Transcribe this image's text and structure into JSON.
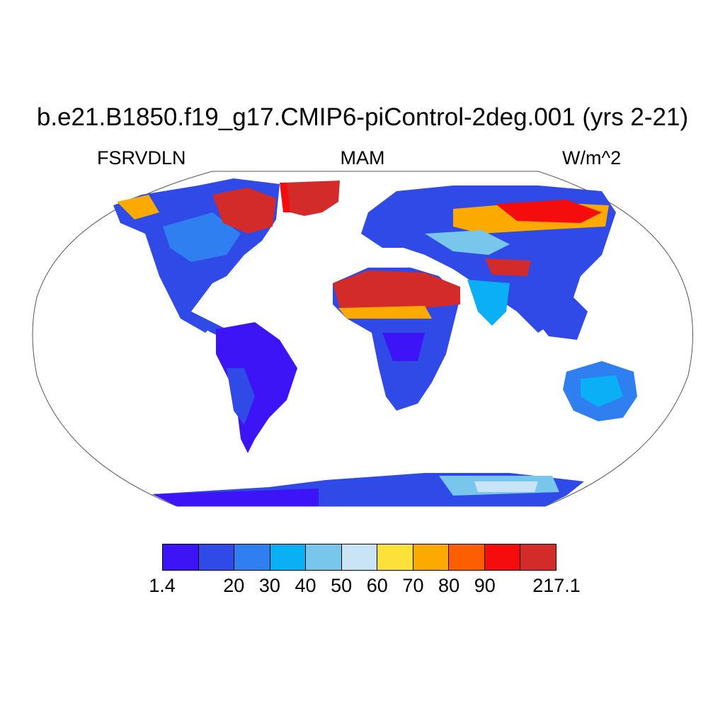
{
  "title": "b.e21.B1850.f19_g17.CMIP6-piControl-2deg.001 (yrs 2-21)",
  "left_label": "FSRVDLN",
  "center_label": "MAM",
  "right_label": "W/m^2",
  "colorbar": {
    "colors": [
      "#3c14f5",
      "#2f4ae6",
      "#2f7ff0",
      "#0aaff5",
      "#78c6ec",
      "#c9e4f6",
      "#fde03a",
      "#fdaa00",
      "#fd5f00",
      "#f50c0c",
      "#d32a2a"
    ],
    "tick_labels": [
      "1.4",
      "",
      "20",
      "30",
      "40",
      "50",
      "60",
      "70",
      "80",
      "90",
      "",
      "217.1"
    ]
  },
  "map_regions": [
    {
      "name": "north-america",
      "color": "#2f4ae6"
    },
    {
      "name": "south-america",
      "color": "#3c14f5"
    },
    {
      "name": "europe-asia",
      "color": "#2f4ae6"
    },
    {
      "name": "africa",
      "color": "#2f4ae6"
    },
    {
      "name": "australia",
      "color": "#2f7ff0"
    },
    {
      "name": "antarctica",
      "color": "#2f4ae6"
    },
    {
      "name": "greenland",
      "color": "#d32a2a"
    },
    {
      "name": "sahara-arabia",
      "color": "#d32a2a"
    },
    {
      "name": "siberia",
      "color": "#fdaa00"
    }
  ]
}
